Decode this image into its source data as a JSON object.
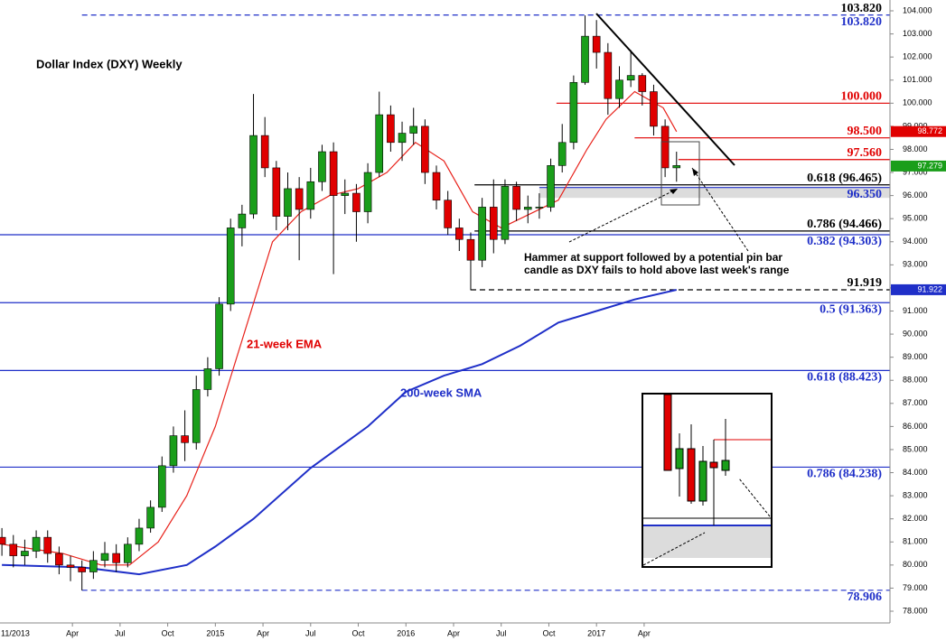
{
  "chart_data": {
    "type": "candlestick",
    "title": "Dollar Index (DXY) Weekly",
    "note_lines": [
      "Hammer at support followed by a potential pin bar",
      "candle as DXY fails to hold above last week's range"
    ],
    "x": [
      2013.88,
      2013.94,
      2014.0,
      2014.06,
      2014.12,
      2014.18,
      2014.24,
      2014.3,
      2014.36,
      2014.42,
      2014.48,
      2014.54,
      2014.6,
      2014.66,
      2014.72,
      2014.78,
      2014.84,
      2014.9,
      2014.96,
      2015.02,
      2015.08,
      2015.14,
      2015.2,
      2015.26,
      2015.32,
      2015.38,
      2015.44,
      2015.5,
      2015.56,
      2015.62,
      2015.68,
      2015.74,
      2015.8,
      2015.86,
      2015.92,
      2015.98,
      2016.04,
      2016.1,
      2016.16,
      2016.22,
      2016.28,
      2016.34,
      2016.4,
      2016.46,
      2016.52,
      2016.58,
      2016.64,
      2016.7,
      2016.76,
      2016.82,
      2016.88,
      2016.94,
      2017.0,
      2017.06,
      2017.12,
      2017.18,
      2017.24,
      2017.3,
      2017.36,
      2017.42
    ],
    "open": [
      81.2,
      80.9,
      80.4,
      80.6,
      81.2,
      80.5,
      80.0,
      79.9,
      79.7,
      80.2,
      80.5,
      80.1,
      80.9,
      81.6,
      82.5,
      84.3,
      85.6,
      85.3,
      87.6,
      88.5,
      91.3,
      94.6,
      95.2,
      98.6,
      97.2,
      95.1,
      96.3,
      95.4,
      96.6,
      97.9,
      96.0,
      96.1,
      95.3,
      97.0,
      99.5,
      98.3,
      98.7,
      99.0,
      97.0,
      95.8,
      94.6,
      94.1,
      93.2,
      95.5,
      94.1,
      96.4,
      95.4,
      95.5,
      95.5,
      97.3,
      98.3,
      100.9,
      102.9,
      102.2,
      100.2,
      101.0,
      101.2,
      100.5,
      99.0,
      97.2
    ],
    "high": [
      81.6,
      81.3,
      81.1,
      81.5,
      81.5,
      80.8,
      80.4,
      80.2,
      80.6,
      81.0,
      80.9,
      81.2,
      82.0,
      82.8,
      84.7,
      86.0,
      86.7,
      88.2,
      89.0,
      91.6,
      95.0,
      95.6,
      100.4,
      99.4,
      97.5,
      97.0,
      96.8,
      97.2,
      98.2,
      98.3,
      96.7,
      96.5,
      97.4,
      100.5,
      99.9,
      99.2,
      99.8,
      99.3,
      97.3,
      96.2,
      95.0,
      94.4,
      95.9,
      96.7,
      96.7,
      96.6,
      96.0,
      96.1,
      97.6,
      99.1,
      101.2,
      103.8,
      103.6,
      102.6,
      101.6,
      102.3,
      101.3,
      100.8,
      99.3,
      97.9
    ],
    "low": [
      80.4,
      79.9,
      80.0,
      80.3,
      80.1,
      79.6,
      79.3,
      78.9,
      79.4,
      79.9,
      79.7,
      79.9,
      80.6,
      81.4,
      82.3,
      84.0,
      84.5,
      85.0,
      87.3,
      88.2,
      91.0,
      93.8,
      95.0,
      96.8,
      94.5,
      94.5,
      93.2,
      95.0,
      96.2,
      92.6,
      95.2,
      94.0,
      94.8,
      96.8,
      97.9,
      97.5,
      98.2,
      96.5,
      95.4,
      94.3,
      93.6,
      91.9,
      92.9,
      93.5,
      93.9,
      94.9,
      94.8,
      95.0,
      95.3,
      97.0,
      98.0,
      100.8,
      101.5,
      99.5,
      99.8,
      100.7,
      99.9,
      98.6,
      96.8,
      96.6
    ],
    "close": [
      80.9,
      80.4,
      80.6,
      81.2,
      80.5,
      80.0,
      79.9,
      79.7,
      80.2,
      80.5,
      80.1,
      80.9,
      81.6,
      82.5,
      84.3,
      85.6,
      85.3,
      87.6,
      88.5,
      91.3,
      94.6,
      95.2,
      98.6,
      97.2,
      95.1,
      96.3,
      95.4,
      96.6,
      97.9,
      96.0,
      96.1,
      95.3,
      97.0,
      99.5,
      98.3,
      98.7,
      99.0,
      97.0,
      95.8,
      94.6,
      94.1,
      93.2,
      95.5,
      94.1,
      96.4,
      95.4,
      95.5,
      95.5,
      97.3,
      98.3,
      100.9,
      102.9,
      102.2,
      100.2,
      101.0,
      101.2,
      100.5,
      99.0,
      97.2,
      97.3
    ],
    "up_color": "#1a9e1a",
    "down_color": "#e00000",
    "series": [
      {
        "name": "21-week EMA",
        "color": "#e8231c",
        "x": [
          2013.88,
          2014.2,
          2014.4,
          2014.55,
          2014.7,
          2014.85,
          2015.0,
          2015.15,
          2015.3,
          2015.45,
          2015.6,
          2015.75,
          2015.9,
          2016.05,
          2016.2,
          2016.35,
          2016.5,
          2016.65,
          2016.8,
          2016.95,
          2017.05,
          2017.2,
          2017.35,
          2017.42
        ],
        "values": [
          80.9,
          80.5,
          80.0,
          80.0,
          81.0,
          83.0,
          86.0,
          90.0,
          94.0,
          95.3,
          96.0,
          96.3,
          97.0,
          98.3,
          97.5,
          95.3,
          94.6,
          95.2,
          95.8,
          98.0,
          99.3,
          100.5,
          99.8,
          98.77
        ]
      },
      {
        "name": "200-week SMA",
        "color": "#1f2fc8",
        "x": [
          2013.88,
          2014.3,
          2014.6,
          2014.85,
          2015.0,
          2015.2,
          2015.5,
          2015.8,
          2016.0,
          2016.2,
          2016.4,
          2016.6,
          2016.8,
          2017.0,
          2017.2,
          2017.42
        ],
        "values": [
          80.0,
          79.9,
          79.6,
          80.0,
          80.8,
          82.0,
          84.2,
          86.0,
          87.5,
          88.2,
          88.7,
          89.5,
          90.5,
          91.0,
          91.5,
          91.92
        ]
      }
    ],
    "levels": [
      {
        "value": 103.82,
        "label": "103.820",
        "tag": "103.820",
        "color": "#1f2fc8",
        "dashed": true,
        "from": 2014.3
      },
      {
        "value": 100.0,
        "label": "100.000",
        "color": "#e00000",
        "dashed": false,
        "from": 2016.79
      },
      {
        "value": 98.5,
        "label": "98.500",
        "color": "#e00000",
        "dashed": false,
        "from": 2017.2
      },
      {
        "value": 97.56,
        "label": "97.560",
        "color": "#e00000",
        "dashed": false,
        "from": 2017.43
      },
      {
        "value": 96.465,
        "label": "0.618 (96.465)",
        "color": "#000000",
        "dashed": false,
        "from": 2016.36
      },
      {
        "value": 96.35,
        "label": "96.350",
        "color": "#1f2fc8",
        "dashed": false,
        "from": 2016.7
      },
      {
        "value": 94.466,
        "label": "0.786 (94.466)",
        "color": "#000000",
        "dashed": false,
        "from": 2016.36
      },
      {
        "value": 94.303,
        "label": "0.382 (94.303)",
        "color": "#1f2fc8",
        "dashed": false,
        "from": 2013.87
      },
      {
        "value": 91.919,
        "label": "91.919",
        "color": "#000000",
        "dashed": true,
        "from": 2016.34
      },
      {
        "value": 91.363,
        "label": "0.5 (91.363)",
        "color": "#1f2fc8",
        "dashed": false,
        "from": 2013.87
      },
      {
        "value": 88.423,
        "label": "0.618 (88.423)",
        "color": "#1f2fc8",
        "dashed": false,
        "from": 2013.87
      },
      {
        "value": 84.238,
        "label": "0.786 (84.238)",
        "color": "#1f2fc8",
        "dashed": false,
        "from": 2013.87
      },
      {
        "value": 78.906,
        "label": "78.906",
        "color": "#1f2fc8",
        "dashed": true,
        "from": 2014.3
      }
    ],
    "zone": [
      95.9,
      96.35
    ],
    "tags": [
      {
        "value": 98.772,
        "color": "#e00000"
      },
      {
        "value": 97.279,
        "color": "#1a9e1a"
      },
      {
        "value": 91.922,
        "color": "#1f2fc8"
      }
    ],
    "xlim": [
      2013.87,
      2018.54
    ],
    "ylim": [
      78,
      104
    ],
    "xticks": [
      {
        "value": 2013.83,
        "label": "11/2013"
      },
      {
        "value": 2014.25,
        "label": "Apr"
      },
      {
        "value": 2014.5,
        "label": "Jul"
      },
      {
        "value": 2014.75,
        "label": "Oct"
      },
      2015,
      {
        "value": 2015.25,
        "label": "Apr"
      },
      {
        "value": 2015.5,
        "label": "Jul"
      },
      {
        "value": 2015.75,
        "label": "Oct"
      },
      2016,
      {
        "value": 2016.25,
        "label": "Apr"
      },
      {
        "value": 2016.5,
        "label": "Jul"
      },
      {
        "value": 2016.75,
        "label": "Oct"
      },
      2017,
      {
        "value": 2017.25,
        "label": "Apr"
      }
    ],
    "yticks": [
      {
        "value": 78,
        "label": "78.000"
      },
      {
        "value": 79,
        "label": "79.000"
      },
      {
        "value": 80,
        "label": "80.000"
      },
      {
        "value": 81,
        "label": "81.000"
      },
      {
        "value": 82,
        "label": "82.000"
      },
      {
        "value": 83,
        "label": "83.000"
      },
      {
        "value": 84,
        "label": "84.000"
      },
      {
        "value": 85,
        "label": "85.000"
      },
      {
        "value": 86,
        "label": "86.000"
      },
      {
        "value": 87,
        "label": "87.000"
      },
      {
        "value": 88,
        "label": "88.000"
      },
      {
        "value": 89,
        "label": "89.000"
      },
      {
        "value": 90,
        "label": "90.000"
      },
      {
        "value": 91,
        "label": "91.000"
      },
      {
        "value": 92,
        "label": "92.000"
      },
      {
        "value": 93,
        "label": "93.000"
      },
      {
        "value": 94,
        "label": "94.000"
      },
      {
        "value": 95,
        "label": "95.000"
      },
      {
        "value": 96,
        "label": "96.000"
      },
      {
        "value": 97,
        "label": "97.000"
      },
      {
        "value": 98,
        "label": "98.000"
      },
      {
        "value": 99,
        "label": "99.000"
      },
      {
        "value": 100,
        "label": "100.000"
      },
      {
        "value": 101,
        "label": "101.000"
      },
      {
        "value": 102,
        "label": "102.000"
      },
      {
        "value": 103,
        "label": "103.000"
      },
      {
        "value": 104,
        "label": "104.000"
      }
    ]
  }
}
